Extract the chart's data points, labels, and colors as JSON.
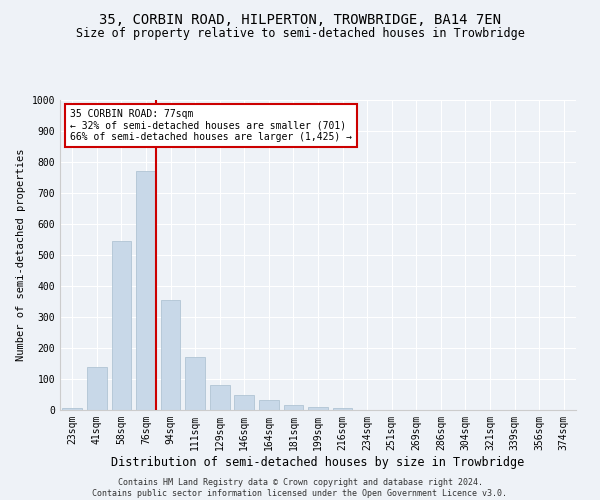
{
  "title1": "35, CORBIN ROAD, HILPERTON, TROWBRIDGE, BA14 7EN",
  "title2": "Size of property relative to semi-detached houses in Trowbridge",
  "xlabel": "Distribution of semi-detached houses by size in Trowbridge",
  "ylabel": "Number of semi-detached properties",
  "categories": [
    "23sqm",
    "41sqm",
    "58sqm",
    "76sqm",
    "94sqm",
    "111sqm",
    "129sqm",
    "146sqm",
    "164sqm",
    "181sqm",
    "199sqm",
    "216sqm",
    "234sqm",
    "251sqm",
    "269sqm",
    "286sqm",
    "304sqm",
    "321sqm",
    "339sqm",
    "356sqm",
    "374sqm"
  ],
  "values": [
    8,
    140,
    545,
    770,
    355,
    170,
    82,
    50,
    33,
    15,
    10,
    5,
    0,
    0,
    0,
    0,
    0,
    0,
    0,
    0,
    0
  ],
  "bar_color": "#c8d8e8",
  "bar_edge_color": "#a8bece",
  "annotation_text_line1": "35 CORBIN ROAD: 77sqm",
  "annotation_text_line2": "← 32% of semi-detached houses are smaller (701)",
  "annotation_text_line3": "66% of semi-detached houses are larger (1,425) →",
  "annotation_box_color": "#ffffff",
  "annotation_box_edge_color": "#cc0000",
  "vline_color": "#cc0000",
  "vline_x_index": 3,
  "ylim": [
    0,
    1000
  ],
  "yticks": [
    0,
    100,
    200,
    300,
    400,
    500,
    600,
    700,
    800,
    900,
    1000
  ],
  "background_color": "#eef2f7",
  "footer_text": "Contains HM Land Registry data © Crown copyright and database right 2024.\nContains public sector information licensed under the Open Government Licence v3.0.",
  "title1_fontsize": 10,
  "title2_fontsize": 8.5,
  "xlabel_fontsize": 8.5,
  "ylabel_fontsize": 7.5,
  "tick_fontsize": 7,
  "annotation_fontsize": 7,
  "footer_fontsize": 6
}
